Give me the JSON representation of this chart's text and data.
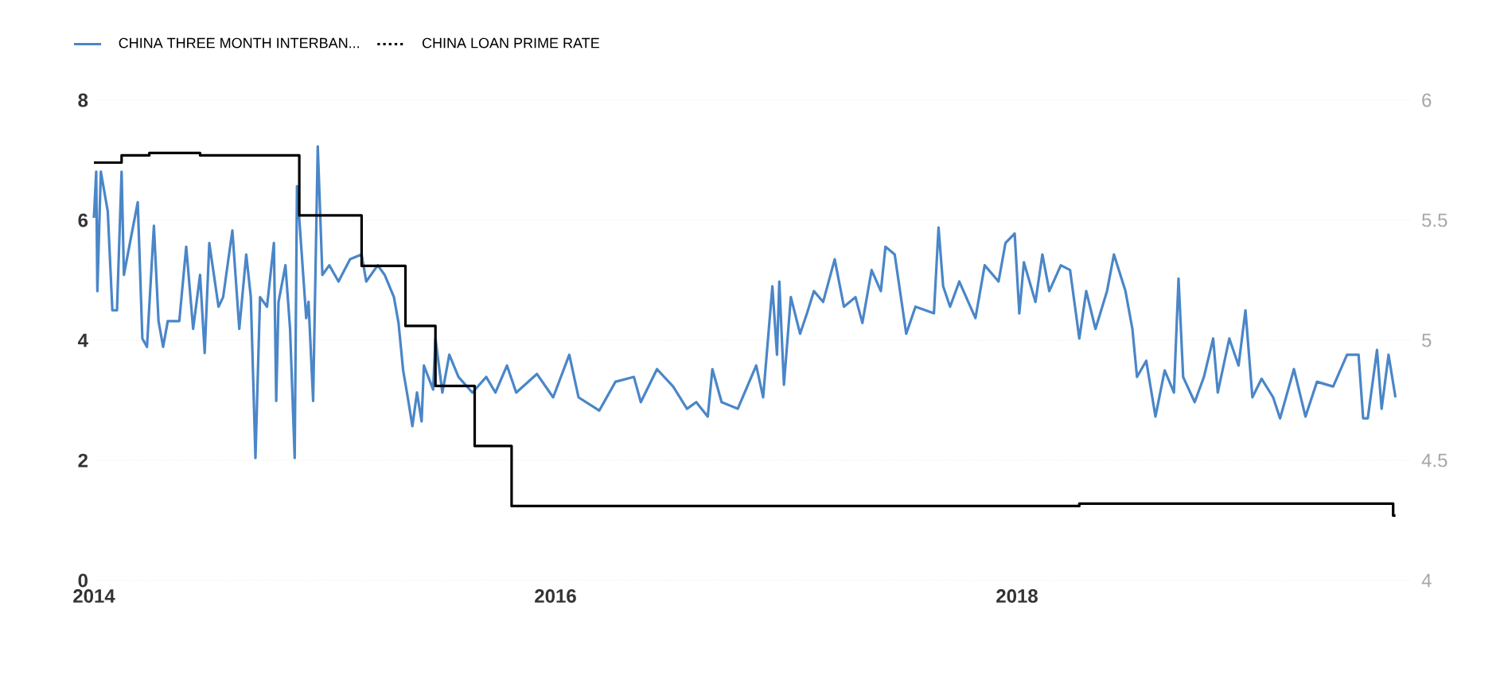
{
  "chart_data": {
    "type": "line",
    "legend": "top left",
    "grid": "y",
    "marker": "none",
    "xlim": [
      2014,
      2019.7
    ],
    "xticks": [
      2014,
      2016,
      2018
    ],
    "ylim": [
      0,
      8
    ],
    "yticks": [
      0,
      2,
      4,
      6,
      8
    ],
    "y2lim": [
      4,
      6
    ],
    "y2ticks": [
      4,
      4.5,
      5,
      5.5,
      6
    ],
    "series": [
      {
        "name": "CHINA THREE MONTH INTERBAN...",
        "color": "#4a86c8",
        "x": [
          2014.0,
          2014.01,
          2014.015,
          2014.03,
          2014.06,
          2014.08,
          2014.1,
          2014.12,
          2014.13,
          2014.16,
          2014.19,
          2014.21,
          2014.23,
          2014.26,
          2014.28,
          2014.3,
          2014.32,
          2014.37,
          2014.4,
          2014.43,
          2014.46,
          2014.48,
          2014.5,
          2014.54,
          2014.56,
          2014.6,
          2014.63,
          2014.66,
          2014.68,
          2014.7,
          2014.72,
          2014.75,
          2014.78,
          2014.79,
          2014.8,
          2014.83,
          2014.85,
          2014.87,
          2014.88,
          2014.92,
          2014.93,
          2014.95,
          2014.97,
          2014.99,
          2015.02,
          2015.06,
          2015.11,
          2015.16,
          2015.18,
          2015.23,
          2015.26,
          2015.3,
          2015.32,
          2015.34,
          2015.36,
          2015.38,
          2015.4,
          2015.42,
          2015.43,
          2015.47,
          2015.48,
          2015.51,
          2015.54,
          2015.58,
          2015.64,
          2015.7,
          2015.74,
          2015.79,
          2015.83,
          2015.92,
          2015.99,
          2016.06,
          2016.1,
          2016.19,
          2016.26,
          2016.34,
          2016.37,
          2016.44,
          2016.51,
          2016.57,
          2016.61,
          2016.66,
          2016.68,
          2016.72,
          2016.79,
          2016.87,
          2016.9,
          2016.94,
          2016.96,
          2016.97,
          2016.99,
          2017.02,
          2017.06,
          2017.09,
          2017.12,
          2017.16,
          2017.21,
          2017.25,
          2017.3,
          2017.33,
          2017.37,
          2017.41,
          2017.43,
          2017.47,
          2017.5,
          2017.52,
          2017.56,
          2017.64,
          2017.66,
          2017.68,
          2017.71,
          2017.75,
          2017.82,
          2017.86,
          2017.92,
          2017.95,
          2017.99,
          2018.01,
          2018.03,
          2018.08,
          2018.11,
          2018.14,
          2018.19,
          2018.23,
          2018.27,
          2018.3,
          2018.34,
          2018.39,
          2018.42,
          2018.47,
          2018.5,
          2018.52,
          2018.56,
          2018.6,
          2018.64,
          2018.68,
          2018.7,
          2018.72,
          2018.77,
          2018.81,
          2018.85,
          2018.87,
          2018.92,
          2018.96,
          2018.99,
          2019.02,
          2019.06,
          2019.11,
          2019.14,
          2019.2,
          2019.25,
          2019.3,
          2019.37,
          2019.43,
          2019.48,
          2019.5,
          2019.52,
          2019.56,
          2019.58,
          2019.61,
          2019.64
        ],
        "values": [
          6.04,
          6.81,
          4.82,
          6.81,
          6.15,
          4.5,
          4.5,
          6.81,
          5.09,
          5.7,
          6.3,
          4.03,
          3.89,
          5.91,
          4.32,
          3.89,
          4.32,
          4.32,
          5.56,
          4.19,
          5.09,
          3.79,
          5.62,
          4.56,
          4.72,
          5.83,
          4.19,
          5.43,
          4.72,
          2.04,
          4.72,
          4.56,
          5.62,
          2.99,
          4.64,
          5.25,
          4.19,
          2.04,
          6.57,
          4.37,
          4.64,
          2.99,
          7.23,
          5.09,
          5.25,
          4.98,
          5.35,
          5.43,
          4.98,
          5.25,
          5.09,
          4.72,
          4.29,
          3.5,
          3.05,
          2.57,
          3.13,
          2.65,
          3.58,
          3.18,
          4.03,
          3.13,
          3.76,
          3.39,
          3.13,
          3.39,
          3.13,
          3.58,
          3.13,
          3.44,
          3.05,
          3.76,
          3.05,
          2.83,
          3.31,
          3.39,
          2.97,
          3.52,
          3.23,
          2.86,
          2.97,
          2.73,
          3.52,
          2.97,
          2.86,
          3.58,
          3.05,
          4.9,
          3.76,
          4.98,
          3.26,
          4.72,
          4.11,
          4.45,
          4.82,
          4.64,
          5.35,
          4.56,
          4.72,
          4.29,
          5.17,
          4.82,
          5.56,
          5.43,
          4.64,
          4.11,
          4.56,
          4.45,
          5.88,
          4.9,
          4.56,
          4.98,
          4.37,
          5.25,
          4.98,
          5.62,
          5.78,
          4.45,
          5.3,
          4.64,
          5.43,
          4.82,
          5.25,
          5.17,
          4.03,
          4.82,
          4.19,
          4.82,
          5.43,
          4.82,
          4.19,
          3.39,
          3.66,
          2.73,
          3.5,
          3.13,
          5.03,
          3.39,
          2.97,
          3.39,
          4.03,
          3.13,
          4.03,
          3.58,
          4.5,
          3.05,
          3.36,
          3.05,
          2.7,
          3.52,
          2.73,
          3.31,
          3.23,
          3.76,
          3.76,
          2.7,
          2.7,
          3.84,
          2.86,
          3.76,
          3.05
        ]
      },
      {
        "name": "CHINA LOAN PRIME RATE",
        "color": "#000000",
        "type": "step",
        "axis": "y2",
        "x": [
          2014.0,
          2014.12,
          2014.24,
          2014.46,
          2014.89,
          2015.16,
          2015.35,
          2015.48,
          2015.65,
          2015.81,
          2018.27,
          2019.63,
          2019.64
        ],
        "values": [
          5.74,
          5.77,
          5.78,
          5.77,
          5.52,
          5.31,
          5.06,
          4.81,
          4.56,
          4.31,
          4.32,
          4.27,
          4.27
        ]
      }
    ]
  }
}
